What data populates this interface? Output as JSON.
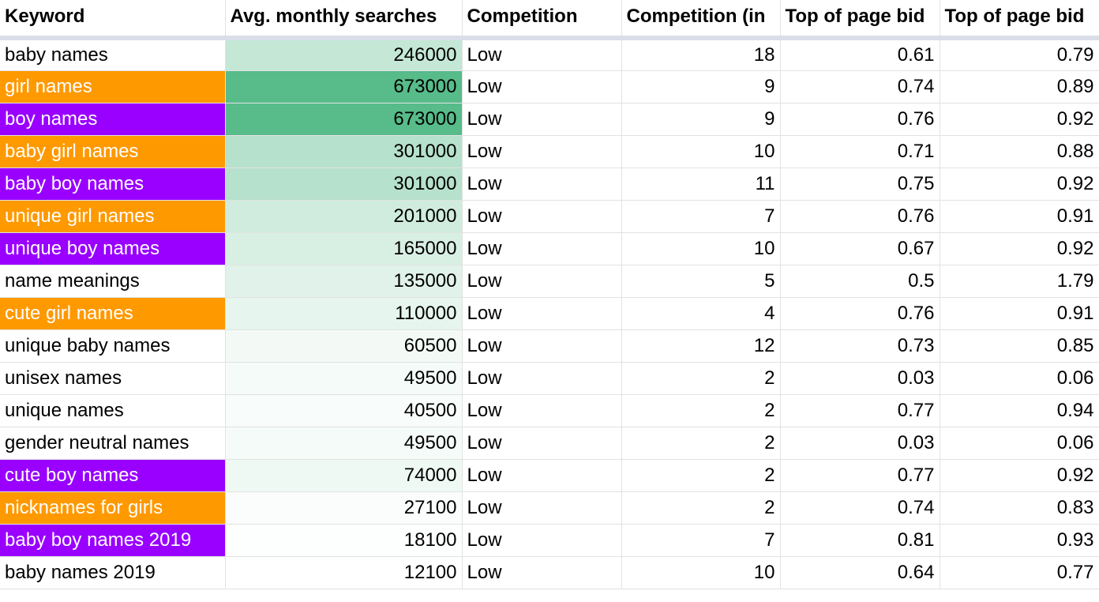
{
  "table": {
    "columns": [
      "Keyword",
      "Avg. monthly searches",
      "Competition",
      "Competition (in",
      "Top of page bid",
      "Top of page bid"
    ],
    "scale_color": "#57bb8a",
    "rows": [
      {
        "keyword": "baby names",
        "searches": 246000,
        "competition": "Low",
        "index": 18,
        "bid_low": 0.61,
        "bid_high": 0.79
      },
      {
        "keyword": "girl names",
        "searches": 673000,
        "competition": "Low",
        "index": 9,
        "bid_low": 0.74,
        "bid_high": 0.89,
        "highlight": "#ff9900"
      },
      {
        "keyword": "boy names",
        "searches": 673000,
        "competition": "Low",
        "index": 9,
        "bid_low": 0.76,
        "bid_high": 0.92,
        "highlight": "#9900ff"
      },
      {
        "keyword": "baby girl names",
        "searches": 301000,
        "competition": "Low",
        "index": 10,
        "bid_low": 0.71,
        "bid_high": 0.88,
        "highlight": "#ff9900"
      },
      {
        "keyword": "baby boy names",
        "searches": 301000,
        "competition": "Low",
        "index": 11,
        "bid_low": 0.75,
        "bid_high": 0.92,
        "highlight": "#9900ff"
      },
      {
        "keyword": "unique girl names",
        "searches": 201000,
        "competition": "Low",
        "index": 7,
        "bid_low": 0.76,
        "bid_high": 0.91,
        "highlight": "#ff9900"
      },
      {
        "keyword": "unique boy names",
        "searches": 165000,
        "competition": "Low",
        "index": 10,
        "bid_low": 0.67,
        "bid_high": 0.92,
        "highlight": "#9900ff"
      },
      {
        "keyword": "name meanings",
        "searches": 135000,
        "competition": "Low",
        "index": 5,
        "bid_low": 0.5,
        "bid_high": 1.79
      },
      {
        "keyword": "cute girl names",
        "searches": 110000,
        "competition": "Low",
        "index": 4,
        "bid_low": 0.76,
        "bid_high": 0.91,
        "highlight": "#ff9900"
      },
      {
        "keyword": "unique baby names",
        "searches": 60500,
        "competition": "Low",
        "index": 12,
        "bid_low": 0.73,
        "bid_high": 0.85
      },
      {
        "keyword": "unisex names",
        "searches": 49500,
        "competition": "Low",
        "index": 2,
        "bid_low": 0.03,
        "bid_high": 0.06
      },
      {
        "keyword": "unique names",
        "searches": 40500,
        "competition": "Low",
        "index": 2,
        "bid_low": 0.77,
        "bid_high": 0.94
      },
      {
        "keyword": "gender neutral names",
        "searches": 49500,
        "competition": "Low",
        "index": 2,
        "bid_low": 0.03,
        "bid_high": 0.06
      },
      {
        "keyword": "cute boy names",
        "searches": 74000,
        "competition": "Low",
        "index": 2,
        "bid_low": 0.77,
        "bid_high": 0.92,
        "highlight": "#9900ff"
      },
      {
        "keyword": "nicknames for girls",
        "searches": 27100,
        "competition": "Low",
        "index": 2,
        "bid_low": 0.74,
        "bid_high": 0.83,
        "highlight": "#ff9900"
      },
      {
        "keyword": "baby boy names 2019",
        "searches": 18100,
        "competition": "Low",
        "index": 7,
        "bid_low": 0.81,
        "bid_high": 0.93,
        "highlight": "#9900ff"
      },
      {
        "keyword": "baby names 2019",
        "searches": 12100,
        "competition": "Low",
        "index": 10,
        "bid_low": 0.64,
        "bid_high": 0.77
      }
    ]
  }
}
